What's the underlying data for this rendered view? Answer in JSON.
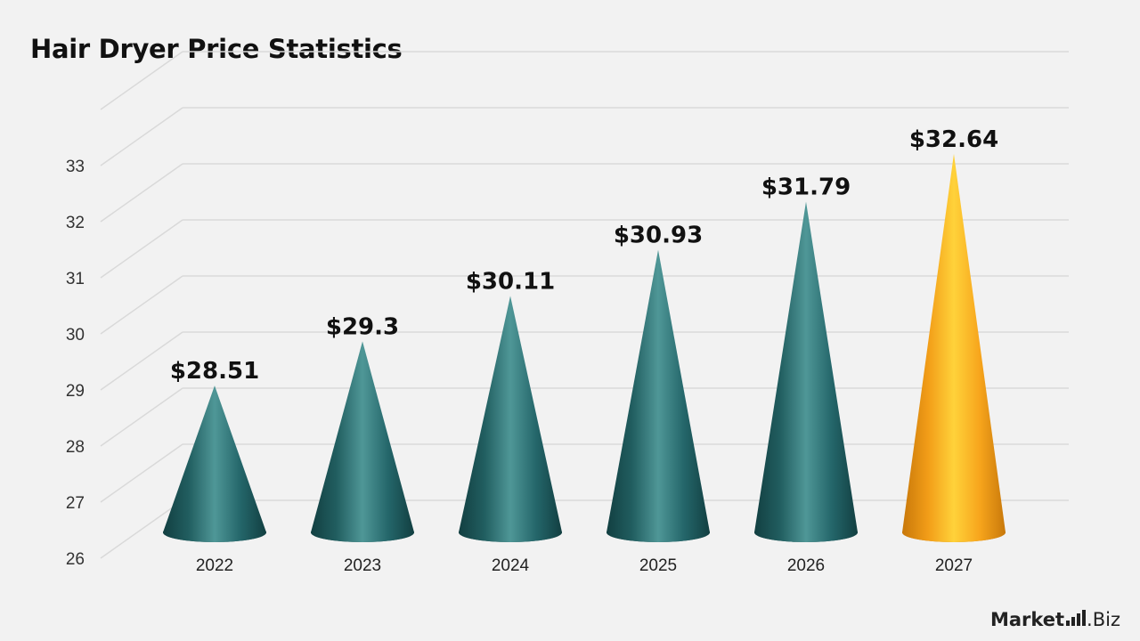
{
  "chart_data": {
    "type": "bar",
    "title": "Hair Dryer Price Statistics",
    "categories": [
      "2022",
      "2023",
      "2024",
      "2025",
      "2026",
      "2027"
    ],
    "values": [
      28.51,
      29.3,
      30.11,
      30.93,
      31.79,
      32.64
    ],
    "data_labels": [
      "$28.51",
      "$29.3",
      "$30.11",
      "$30.93",
      "$31.79",
      "$32.64"
    ],
    "yticks": [
      "26",
      "27",
      "28",
      "29",
      "30",
      "31",
      "32",
      "33"
    ],
    "ylim": [
      26,
      34
    ],
    "grid": true,
    "bar_shape": "cone",
    "colors": {
      "default": "#2a6b6b",
      "highlight": "#f6a81c"
    },
    "highlight_index": 5
  },
  "brand": {
    "name": "Market",
    "suffix": "Biz"
  }
}
